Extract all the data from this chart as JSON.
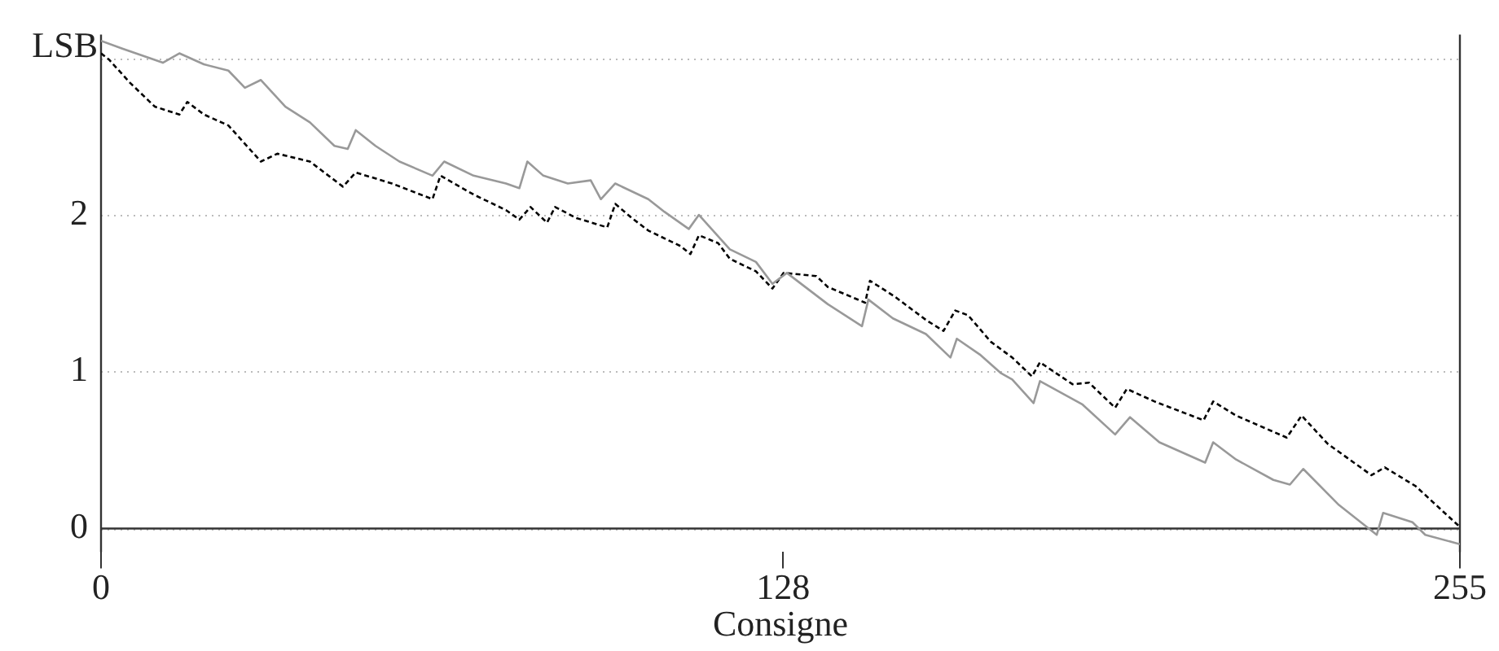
{
  "chart_data": {
    "type": "line",
    "xlabel": "Consigne",
    "ylabel": "LSB",
    "xlim": [
      0,
      255
    ],
    "xticks": [
      0,
      128,
      255
    ],
    "ylim": [
      -0.15,
      3.15
    ],
    "yticks": [
      0,
      1,
      2,
      {
        "value": 3,
        "label": null
      }
    ],
    "grid": "y",
    "legend": false,
    "marker": "none",
    "series": [
      {
        "color": "#999999",
        "line_style": "solid",
        "x": [
          0,
          4,
          11.6,
          14.7,
          19.3,
          23.9,
          27,
          30,
          34.6,
          39.2,
          43.8,
          46.3,
          47.8,
          51.5,
          56,
          62.2,
          64.4,
          69.9,
          76,
          78.5,
          80,
          83,
          87.6,
          91.9,
          93.8,
          96.5,
          102.7,
          105.7,
          110.3,
          112.2,
          118,
          122.9,
          126,
          128.7,
          136.4,
          142.8,
          144,
          148.6,
          154.8,
          159.4,
          160.6,
          164.9,
          168.9,
          171,
          175,
          176.2,
          184.2,
          190.3,
          193.1,
          198.6,
          207.2,
          208.7,
          213,
          220,
          223.1,
          225.6,
          232.3,
          239.4,
          240.6,
          246.1,
          248.5,
          255
        ],
        "values": [
          3.11,
          3.06,
          2.97,
          3.03,
          2.96,
          2.92,
          2.81,
          2.86,
          2.69,
          2.59,
          2.44,
          2.42,
          2.54,
          2.44,
          2.34,
          2.25,
          2.34,
          2.25,
          2.2,
          2.17,
          2.34,
          2.25,
          2.2,
          2.22,
          2.1,
          2.2,
          2.1,
          2.02,
          1.91,
          2.0,
          1.78,
          1.7,
          1.56,
          1.63,
          1.43,
          1.29,
          1.46,
          1.34,
          1.24,
          1.09,
          1.21,
          1.11,
          0.99,
          0.95,
          0.8,
          0.94,
          0.79,
          0.6,
          0.71,
          0.55,
          0.42,
          0.55,
          0.44,
          0.31,
          0.28,
          0.38,
          0.15,
          -0.04,
          0.1,
          0.04,
          -0.04,
          -0.1
        ]
      },
      {
        "color": "#000000",
        "line_style": "dashed",
        "x": [
          0,
          1.5,
          5.5,
          10.1,
          14.7,
          16.2,
          19.3,
          23.9,
          30,
          33.1,
          39.2,
          45.4,
          47.8,
          54.6,
          62.2,
          63.7,
          69.9,
          76,
          78.5,
          80.6,
          83.7,
          85.2,
          89.2,
          95,
          96.5,
          99.6,
          102.7,
          108.8,
          110.6,
          112.2,
          115.8,
          118,
          122.9,
          126,
          128.1,
          134.2,
          136.4,
          143.4,
          144.3,
          148.9,
          154.8,
          158.1,
          160.3,
          162.7,
          167,
          171,
          174.7,
          176.2,
          182.3,
          185.4,
          190.3,
          192.5,
          197.7,
          206.9,
          208.7,
          213,
          222.5,
          225.3,
          230.2,
          238.4,
          240.9,
          246.7,
          255
        ],
        "values": [
          3.03,
          2.99,
          2.84,
          2.69,
          2.64,
          2.72,
          2.64,
          2.57,
          2.34,
          2.39,
          2.34,
          2.18,
          2.27,
          2.2,
          2.1,
          2.25,
          2.13,
          2.03,
          1.97,
          2.05,
          1.95,
          2.05,
          1.98,
          1.92,
          2.07,
          1.98,
          1.9,
          1.8,
          1.75,
          1.87,
          1.82,
          1.72,
          1.64,
          1.53,
          1.63,
          1.61,
          1.54,
          1.44,
          1.58,
          1.48,
          1.33,
          1.26,
          1.39,
          1.36,
          1.19,
          1.09,
          0.97,
          1.06,
          0.92,
          0.93,
          0.77,
          0.89,
          0.81,
          0.69,
          0.81,
          0.72,
          0.58,
          0.72,
          0.54,
          0.34,
          0.39,
          0.27,
          0.01
        ]
      }
    ]
  }
}
